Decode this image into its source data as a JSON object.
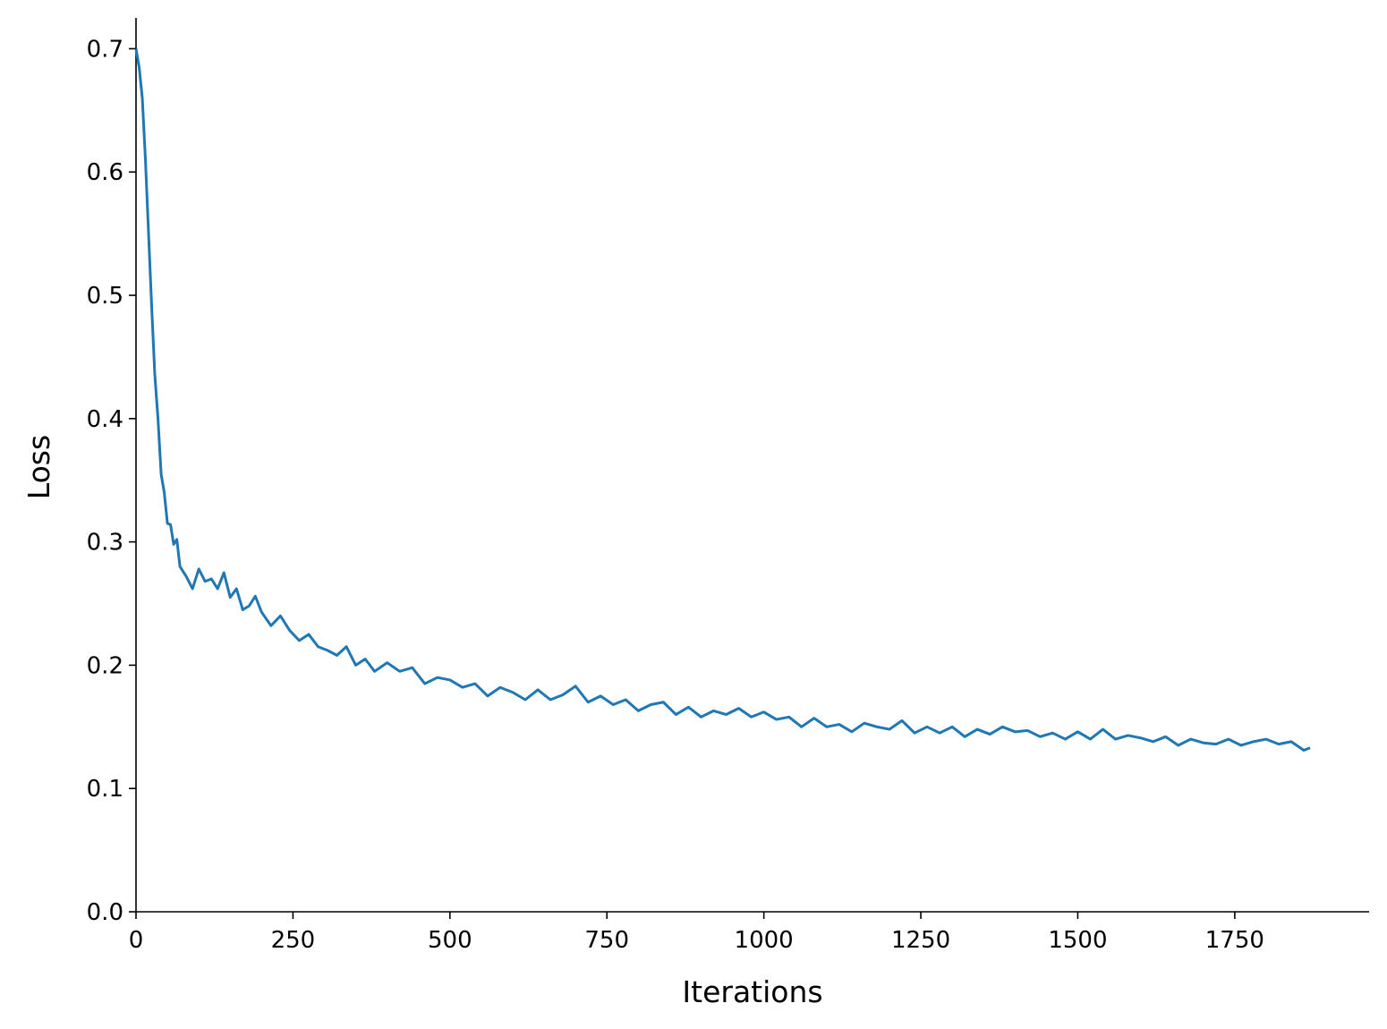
{
  "chart_data": {
    "type": "line",
    "x_label": "Iterations",
    "y_label": "Loss",
    "x": [
      0,
      5,
      10,
      15,
      20,
      25,
      30,
      35,
      40,
      45,
      50,
      55,
      60,
      65,
      70,
      80,
      90,
      100,
      110,
      120,
      130,
      140,
      150,
      160,
      170,
      180,
      190,
      200,
      215,
      230,
      245,
      260,
      275,
      290,
      305,
      320,
      335,
      350,
      365,
      380,
      400,
      420,
      440,
      460,
      480,
      500,
      520,
      540,
      560,
      580,
      600,
      620,
      640,
      660,
      680,
      700,
      720,
      740,
      760,
      780,
      800,
      820,
      840,
      860,
      880,
      900,
      920,
      940,
      960,
      980,
      1000,
      1020,
      1040,
      1060,
      1080,
      1100,
      1120,
      1140,
      1160,
      1180,
      1200,
      1220,
      1240,
      1260,
      1280,
      1300,
      1320,
      1340,
      1360,
      1380,
      1400,
      1420,
      1440,
      1460,
      1480,
      1500,
      1520,
      1540,
      1560,
      1580,
      1600,
      1620,
      1640,
      1660,
      1680,
      1700,
      1720,
      1740,
      1760,
      1780,
      1800,
      1820,
      1840,
      1860,
      1870
    ],
    "series": [
      {
        "name": "Loss",
        "color": "#1f77b4",
        "values": [
          0.7,
          0.685,
          0.66,
          0.61,
          0.55,
          0.49,
          0.435,
          0.4,
          0.355,
          0.34,
          0.315,
          0.314,
          0.298,
          0.302,
          0.28,
          0.272,
          0.262,
          0.278,
          0.268,
          0.27,
          0.262,
          0.275,
          0.255,
          0.262,
          0.245,
          0.248,
          0.256,
          0.243,
          0.232,
          0.24,
          0.228,
          0.22,
          0.225,
          0.215,
          0.212,
          0.208,
          0.215,
          0.2,
          0.205,
          0.195,
          0.202,
          0.195,
          0.198,
          0.185,
          0.19,
          0.188,
          0.182,
          0.185,
          0.175,
          0.182,
          0.178,
          0.172,
          0.18,
          0.172,
          0.176,
          0.183,
          0.17,
          0.175,
          0.168,
          0.172,
          0.163,
          0.168,
          0.17,
          0.16,
          0.166,
          0.158,
          0.163,
          0.16,
          0.165,
          0.158,
          0.162,
          0.156,
          0.158,
          0.15,
          0.157,
          0.15,
          0.152,
          0.146,
          0.153,
          0.15,
          0.148,
          0.155,
          0.145,
          0.15,
          0.145,
          0.15,
          0.142,
          0.148,
          0.144,
          0.15,
          0.146,
          0.147,
          0.142,
          0.145,
          0.14,
          0.146,
          0.14,
          0.148,
          0.14,
          0.143,
          0.141,
          0.138,
          0.142,
          0.135,
          0.14,
          0.137,
          0.136,
          0.14,
          0.135,
          0.138,
          0.14,
          0.136,
          0.138,
          0.131,
          0.133
        ]
      }
    ],
    "xlim": [
      0,
      1964
    ],
    "ylim": [
      0,
      0.725
    ],
    "xticks": [
      0,
      250,
      500,
      750,
      1000,
      1250,
      1500,
      1750
    ],
    "yticks": [
      {
        "value": 0,
        "label": "0.0"
      },
      0.1,
      0.2,
      0.3,
      0.4,
      0.5,
      0.6,
      0.7
    ],
    "grid": false
  }
}
